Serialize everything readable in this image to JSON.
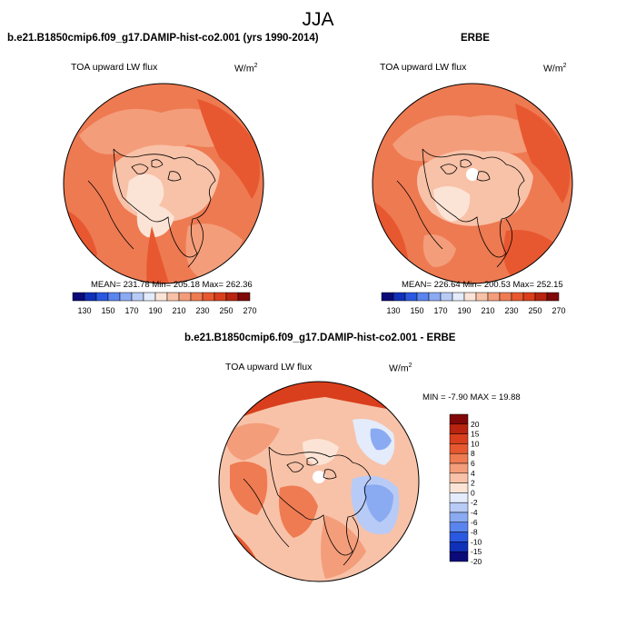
{
  "season": "JJA",
  "top_left": {
    "title": "b.e21.B1850cmip6.f09_g17.DAMIP-hist-co2.001 (yrs 1990-2014)",
    "variable": "TOA upward LW flux",
    "units": "W/m",
    "units_exp": "2",
    "stats": "MEAN= 231.78  Min= 205.18  Max= 262.36"
  },
  "top_right": {
    "title": "ERBE",
    "variable": "TOA upward LW flux",
    "units": "W/m",
    "units_exp": "2",
    "stats": "MEAN= 226.64  Min= 200.53  Max= 252.15"
  },
  "bottom": {
    "title": "b.e21.B1850cmip6.f09_g17.DAMIP-hist-co2.001 - ERBE",
    "variable": "TOA upward LW flux",
    "units": "W/m",
    "units_exp": "2",
    "stats": "MIN =  -7.90 MAX =  19.88"
  },
  "abs_colorbar": {
    "labels": [
      "130",
      "150",
      "170",
      "190",
      "210",
      "230",
      "250",
      "270"
    ],
    "colors": [
      "#0a0a78",
      "#1030b8",
      "#2a58e0",
      "#5a84ee",
      "#8aaaf2",
      "#b8cbf6",
      "#e4ebfb",
      "#fbe4d6",
      "#f8c2a8",
      "#f49d7a",
      "#ef7b52",
      "#e85830",
      "#d93f1c",
      "#b82410",
      "#800808"
    ]
  },
  "diff_colorbar": {
    "labels": [
      "20",
      "15",
      "10",
      "8",
      "6",
      "4",
      "2",
      "0",
      "-2",
      "-4",
      "-6",
      "-8",
      "-10",
      "-15",
      "-20"
    ],
    "colors": [
      "#800808",
      "#b82410",
      "#d93f1c",
      "#e85830",
      "#ef7b52",
      "#f49d7a",
      "#f8c2a8",
      "#fbe4d6",
      "#e4ebfb",
      "#b8cbf6",
      "#8aaaf2",
      "#5a84ee",
      "#2a58e0",
      "#1030b8",
      "#0a0a78"
    ]
  }
}
